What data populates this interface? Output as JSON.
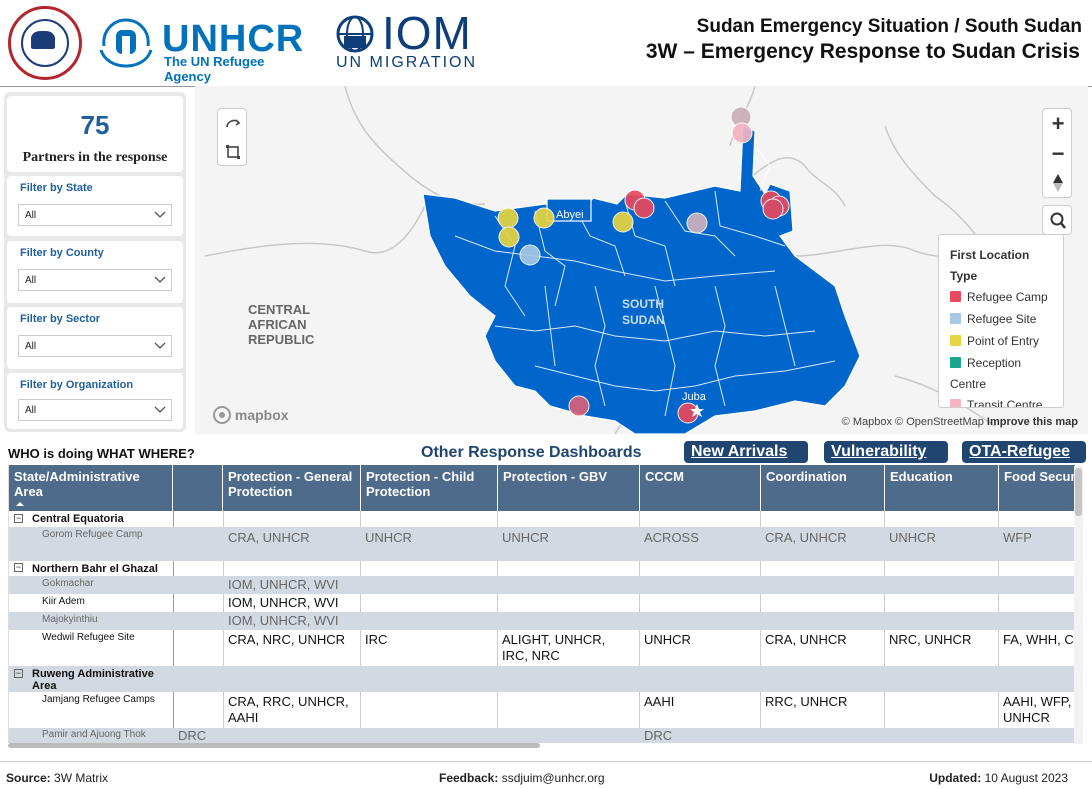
{
  "header": {
    "title_line1": "Sudan Emergency Situation / South Sudan",
    "title_line2": "3W – Emergency Response to Sudan Crisis",
    "unhcr_name": "UNHCR",
    "unhcr_tagline": "The UN Refugee Agency",
    "iom_name": "IOM",
    "iom_tagline": "UN MIGRATION"
  },
  "summary": {
    "partners_count": "75",
    "partners_label": "Partners in the response"
  },
  "filters": [
    {
      "label": "Filter by State",
      "value": "All"
    },
    {
      "label": "Filter by County",
      "value": "All"
    },
    {
      "label": "Filter by Sector",
      "value": "All"
    },
    {
      "label": "Filter by Organization",
      "value": "All"
    }
  ],
  "map": {
    "labels": {
      "abyei": "Abyei",
      "south_sudan_1": "SOUTH",
      "south_sudan_2": "SUDAN",
      "car_1": "CENTRAL",
      "car_2": "AFRICAN",
      "car_3": "REPUBLIC",
      "juba": "Juba"
    },
    "attribution_mapbox": "© Mapbox",
    "attribution_osm": "© OpenStreetMap",
    "attribution_improve": "Improve this map",
    "mapbox_logo": "mapbox",
    "country_color": "#0066cc",
    "legend": {
      "title1": "First Location",
      "title2": "Type",
      "items": [
        {
          "label": "Refugee Camp",
          "color": "#e8495f"
        },
        {
          "label": "Refugee Site",
          "color": "#a6c8e6"
        },
        {
          "label": "Point of Entry",
          "color": "#e6d441"
        },
        {
          "label": "Reception",
          "color": "#1aa68a"
        },
        {
          "label": "Centre",
          "color": ""
        },
        {
          "label": "Transit Centre",
          "color": "#f2b5c1"
        }
      ]
    },
    "controls": {
      "zoom_in": "+",
      "zoom_out": "−"
    }
  },
  "section": {
    "who_title": "WHO is doing WHAT WHERE?",
    "other_dashboards": "Other Response Dashboards",
    "dashboards": [
      "New Arrivals",
      "Vulnerability",
      "OTA-Refugee"
    ]
  },
  "table": {
    "headers": [
      "State/Administrative Area",
      "",
      "Protection - General Protection",
      "Protection - Child Protection",
      "Protection - GBV",
      "CCCM",
      "Coordination",
      "Education",
      "Food Security"
    ],
    "groups": [
      {
        "name": "Central Equatoria",
        "rows": [
          {
            "name": "Gorom Refugee Camp",
            "cells": [
              "",
              "CRA, UNHCR",
              "UNHCR",
              "UNHCR",
              "ACROSS",
              "CRA, UNHCR",
              "UNHCR",
              "WFP"
            ]
          }
        ]
      },
      {
        "name": "Northern Bahr el Ghazal",
        "rows": [
          {
            "name": "Gokmachar",
            "cells": [
              "",
              "IOM, UNHCR, WVI",
              "",
              "",
              "",
              "",
              "",
              ""
            ]
          },
          {
            "name": "Kiir Adem",
            "cells": [
              "",
              "IOM, UNHCR, WVI",
              "",
              "",
              "",
              "",
              "",
              ""
            ]
          },
          {
            "name": "Majokyinthiu",
            "cells": [
              "",
              "IOM, UNHCR, WVI",
              "",
              "",
              "",
              "",
              "",
              ""
            ]
          },
          {
            "name": "Wedwil Refugee Site",
            "cells": [
              "",
              "CRA, NRC, UNHCR",
              "IRC",
              "ALIGHT, UNHCR, IRC, NRC",
              "UNHCR",
              "CRA, UNHCR",
              "NRC, UNHCR",
              "FA, WHH, CARE"
            ]
          }
        ]
      },
      {
        "name": "Ruweng Administrative Area",
        "rows": [
          {
            "name": "Jamjang Refugee Camps",
            "cells": [
              "",
              "CRA, RRC, UNHCR, AAHI",
              "",
              "",
              "AAHI",
              "RRC, UNHCR",
              "",
              "AAHI, WFP, UNHCR"
            ]
          },
          {
            "name": "Pamir and Ajuong Thok",
            "cells": [
              "DRC",
              "",
              "",
              "",
              "DRC",
              "",
              "",
              ""
            ]
          }
        ]
      }
    ]
  },
  "footer": {
    "source_label": "Source:",
    "source_value": "3W Matrix",
    "feedback_label": "Feedback:",
    "feedback_value": "ssdjuim@unhcr.org",
    "updated_label": "Updated:",
    "updated_value": "10 August 2023"
  }
}
